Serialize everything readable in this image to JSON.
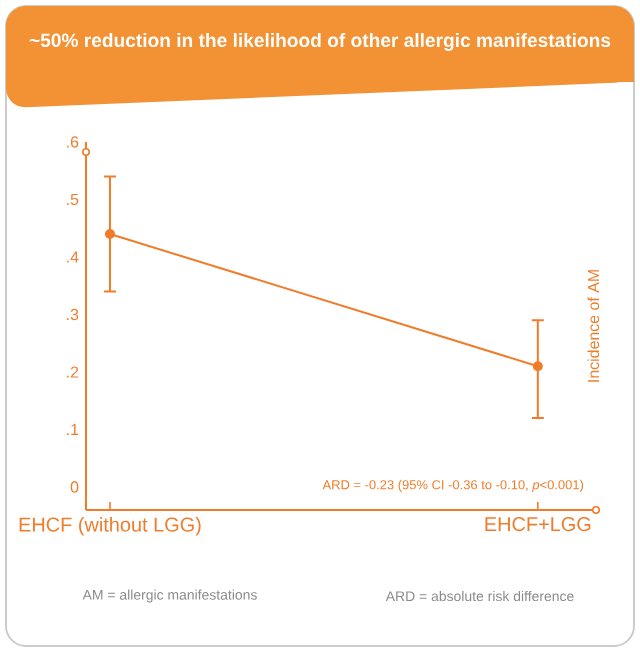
{
  "chart_data": {
    "type": "line",
    "title": "~50% reduction in the likelihood of other allergic manifestations",
    "ylabel": "Incidence of AM",
    "categories": [
      "EHCF (without LGG)",
      "EHCF+LGG"
    ],
    "series": [
      {
        "color": "#f07c2a",
        "values": [
          0.44,
          0.21
        ],
        "errors": [
          [
            0.34,
            0.54
          ],
          [
            0.12,
            0.29
          ]
        ]
      }
    ],
    "ylim": [
      -0.04,
      0.6
    ],
    "yticks": [
      {
        "value": 0,
        "label": "0"
      },
      {
        "value": 0.1,
        "label": ".1"
      },
      {
        "value": 0.2,
        "label": ".2"
      },
      {
        "value": 0.3,
        "label": ".3"
      },
      {
        "value": 0.4,
        "label": ".4"
      },
      {
        "value": 0.5,
        "label": ".5"
      },
      {
        "value": 0.6,
        "label": ".6"
      }
    ],
    "marker": "circle",
    "grid": false,
    "annotations": [
      "ARD = -0.23 (95% CI -0.36 to -0.10, *p*<0.001)",
      "AM = allergic manifestations",
      "ARD = absolute risk difference"
    ]
  }
}
